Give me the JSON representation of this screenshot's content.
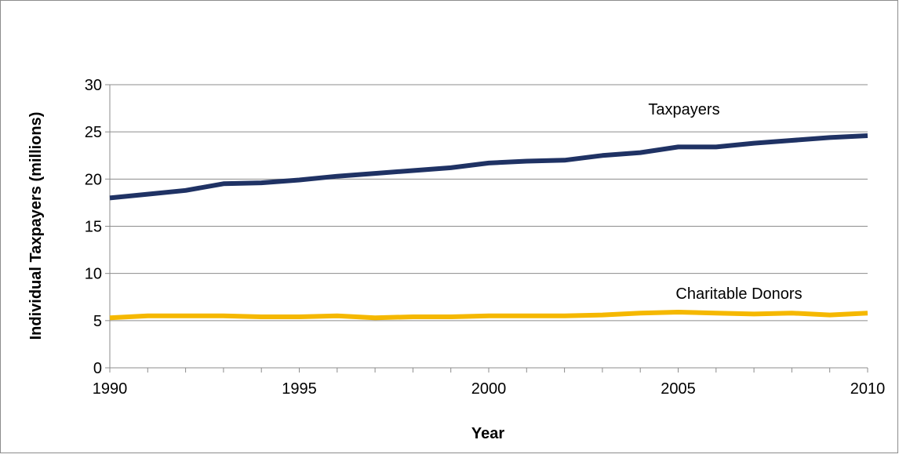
{
  "chart_data": {
    "type": "line",
    "title": "",
    "xlabel": "Year",
    "ylabel": "Individual Taxpayers  (millions)",
    "x": [
      1990,
      1991,
      1992,
      1993,
      1994,
      1995,
      1996,
      1997,
      1998,
      1999,
      2000,
      2001,
      2002,
      2003,
      2004,
      2005,
      2006,
      2007,
      2008,
      2009,
      2010
    ],
    "xlim": [
      1990,
      2010
    ],
    "ylim": [
      0,
      30
    ],
    "x_ticks": [
      1990,
      1995,
      2000,
      2005,
      2010
    ],
    "y_ticks": [
      0,
      5,
      10,
      15,
      20,
      25,
      30
    ],
    "grid": "horizontal",
    "legend": "none",
    "series": [
      {
        "name": "Taxpayers",
        "color": "#1f3264",
        "values": [
          18.0,
          18.4,
          18.8,
          19.5,
          19.6,
          19.9,
          20.3,
          20.6,
          20.9,
          21.2,
          21.7,
          21.9,
          22.0,
          22.5,
          22.8,
          23.4,
          23.4,
          23.8,
          24.1,
          24.4,
          24.6
        ]
      },
      {
        "name": "Charitable Donors",
        "color": "#f5b800",
        "values": [
          5.3,
          5.5,
          5.5,
          5.5,
          5.4,
          5.4,
          5.5,
          5.3,
          5.4,
          5.4,
          5.5,
          5.5,
          5.5,
          5.6,
          5.8,
          5.9,
          5.8,
          5.7,
          5.8,
          5.6,
          5.8
        ]
      }
    ]
  }
}
